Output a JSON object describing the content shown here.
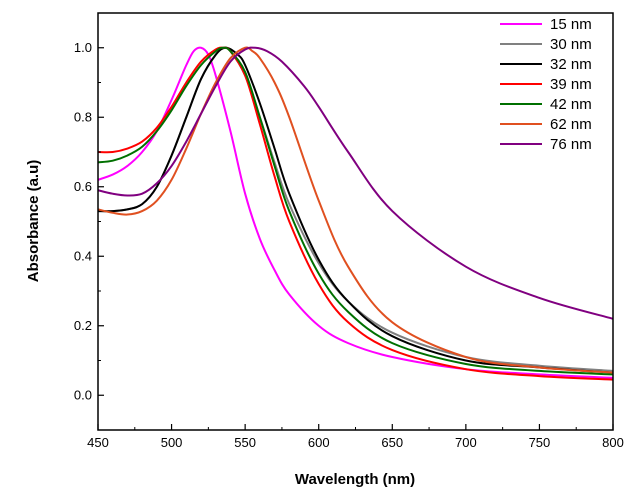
{
  "chart_data": {
    "type": "line",
    "title": "",
    "xlabel": "Wavelength (nm)",
    "ylabel": "Absorbance (a.u)",
    "xlim": [
      450,
      800
    ],
    "ylim": [
      -0.1,
      1.1
    ],
    "xticks": [
      450,
      500,
      550,
      600,
      650,
      700,
      750,
      800
    ],
    "xtick_labels": [
      "450",
      "500",
      "550",
      "600",
      "650",
      "700",
      "750",
      "800"
    ],
    "yticks": [
      0.0,
      0.2,
      0.4,
      0.6,
      0.8,
      1.0
    ],
    "ytick_labels": [
      "0.0",
      "0.2",
      "0.4",
      "0.6",
      "0.8",
      "1.0"
    ],
    "grid": false,
    "legend_position": "top-right",
    "series": [
      {
        "name": "15 nm",
        "color": "#ff00ff",
        "x": [
          450,
          460,
          470,
          480,
          490,
          500,
          505,
          510,
          515,
          520,
          525,
          530,
          540,
          550,
          560,
          570,
          580,
          600,
          620,
          650,
          700,
          750,
          800
        ],
        "y": [
          0.62,
          0.635,
          0.66,
          0.7,
          0.76,
          0.85,
          0.9,
          0.95,
          0.99,
          1.0,
          0.98,
          0.92,
          0.76,
          0.58,
          0.45,
          0.36,
          0.29,
          0.2,
          0.15,
          0.11,
          0.075,
          0.06,
          0.05
        ]
      },
      {
        "name": "30 nm",
        "color": "#808080",
        "x": [
          450,
          460,
          470,
          480,
          490,
          500,
          510,
          520,
          530,
          535,
          540,
          550,
          560,
          570,
          580,
          600,
          620,
          650,
          700,
          750,
          800
        ],
        "y": [
          0.53,
          0.53,
          0.535,
          0.55,
          0.6,
          0.69,
          0.8,
          0.91,
          0.98,
          1.0,
          0.99,
          0.92,
          0.8,
          0.67,
          0.55,
          0.38,
          0.27,
          0.18,
          0.11,
          0.085,
          0.07
        ]
      },
      {
        "name": "32 nm",
        "color": "#000000",
        "x": [
          450,
          460,
          470,
          480,
          490,
          500,
          510,
          520,
          530,
          537,
          545,
          550,
          560,
          570,
          580,
          600,
          620,
          650,
          700,
          750,
          800
        ],
        "y": [
          0.53,
          0.53,
          0.535,
          0.55,
          0.6,
          0.69,
          0.8,
          0.91,
          0.98,
          1.0,
          0.98,
          0.95,
          0.84,
          0.71,
          0.58,
          0.39,
          0.27,
          0.17,
          0.1,
          0.08,
          0.065
        ]
      },
      {
        "name": "39 nm",
        "color": "#ff0000",
        "x": [
          450,
          460,
          470,
          480,
          490,
          500,
          510,
          520,
          530,
          535,
          540,
          550,
          560,
          570,
          580,
          600,
          620,
          650,
          700,
          750,
          800
        ],
        "y": [
          0.7,
          0.7,
          0.71,
          0.73,
          0.77,
          0.83,
          0.9,
          0.96,
          0.995,
          1.0,
          0.99,
          0.92,
          0.78,
          0.63,
          0.5,
          0.32,
          0.21,
          0.13,
          0.075,
          0.055,
          0.045
        ]
      },
      {
        "name": "42 nm",
        "color": "#007000",
        "x": [
          450,
          460,
          470,
          480,
          490,
          500,
          510,
          520,
          530,
          535,
          540,
          550,
          560,
          570,
          580,
          600,
          620,
          650,
          700,
          750,
          800
        ],
        "y": [
          0.67,
          0.675,
          0.69,
          0.715,
          0.76,
          0.82,
          0.89,
          0.95,
          0.99,
          1.0,
          0.99,
          0.93,
          0.8,
          0.66,
          0.53,
          0.35,
          0.24,
          0.15,
          0.09,
          0.07,
          0.06
        ]
      },
      {
        "name": "62 nm",
        "color": "#e05020",
        "x": [
          450,
          460,
          470,
          480,
          490,
          500,
          510,
          520,
          530,
          540,
          550,
          555,
          560,
          570,
          580,
          600,
          620,
          650,
          700,
          750,
          800
        ],
        "y": [
          0.535,
          0.525,
          0.52,
          0.53,
          0.56,
          0.62,
          0.71,
          0.81,
          0.9,
          0.97,
          1.0,
          0.99,
          0.97,
          0.9,
          0.8,
          0.56,
          0.37,
          0.21,
          0.11,
          0.08,
          0.065
        ]
      },
      {
        "name": "76 nm",
        "color": "#800080",
        "x": [
          450,
          460,
          470,
          480,
          490,
          500,
          510,
          520,
          530,
          540,
          550,
          557,
          565,
          575,
          590,
          600,
          620,
          650,
          700,
          750,
          800
        ],
        "y": [
          0.59,
          0.58,
          0.575,
          0.58,
          0.61,
          0.66,
          0.73,
          0.81,
          0.89,
          0.96,
          0.995,
          1.0,
          0.99,
          0.96,
          0.89,
          0.83,
          0.7,
          0.53,
          0.37,
          0.28,
          0.22
        ]
      }
    ]
  }
}
